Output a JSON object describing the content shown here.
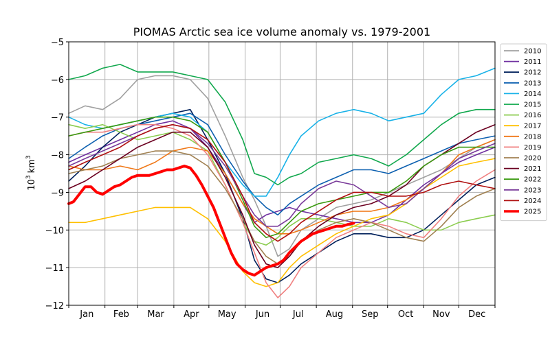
{
  "chart_data": {
    "type": "line",
    "title": "PIOMAS Arctic sea ice volume anomaly vs. 1979-2001",
    "ylabel": "10³ km³",
    "ylabel_base": "10",
    "ylabel_exp": "3",
    "ylabel_unit": "km",
    "ylabel_unit_exp": "3",
    "ylim": [
      -12,
      -5
    ],
    "yticks": [
      "−5",
      "−6",
      "−7",
      "−8",
      "−9",
      "−10",
      "−11",
      "−12"
    ],
    "ytick_values": [
      -5,
      -6,
      -7,
      -8,
      -9,
      -10,
      -11,
      -12
    ],
    "xlim": [
      1,
      366
    ],
    "month_boundaries": [
      1,
      32,
      60,
      91,
      121,
      152,
      182,
      213,
      244,
      274,
      305,
      335,
      366
    ],
    "months": [
      "Jan",
      "Feb",
      "Mar",
      "Apr",
      "May",
      "Jun",
      "Jul",
      "Aug",
      "Sep",
      "Oct",
      "Nov",
      "Dec"
    ],
    "grid": true,
    "legend_position": "right",
    "series": [
      {
        "name": "2010",
        "color": "#a0a0a0",
        "x": [
          1,
          15,
          30,
          45,
          60,
          75,
          90,
          105,
          120,
          135,
          150,
          160,
          170,
          180,
          190,
          200,
          215,
          230,
          245,
          260,
          275,
          290,
          305,
          320,
          335,
          350,
          366
        ],
        "y": [
          -6.9,
          -6.7,
          -6.8,
          -6.5,
          -6.0,
          -5.9,
          -5.9,
          -6.0,
          -6.5,
          -7.5,
          -8.6,
          -9.2,
          -9.9,
          -10.7,
          -10.5,
          -10.0,
          -9.7,
          -9.4,
          -9.3,
          -9.2,
          -9.0,
          -8.8,
          -8.6,
          -8.4,
          -8.1,
          -7.8,
          -7.6
        ]
      },
      {
        "name": "2011",
        "color": "#7030a0",
        "x": [
          1,
          15,
          30,
          45,
          60,
          75,
          90,
          105,
          120,
          135,
          150,
          160,
          170,
          180,
          190,
          200,
          215,
          230,
          245,
          260,
          275,
          290,
          305,
          320,
          335,
          350,
          366
        ],
        "y": [
          -8.2,
          -8.0,
          -7.8,
          -7.6,
          -7.4,
          -7.2,
          -7.1,
          -7.3,
          -7.8,
          -8.5,
          -9.3,
          -9.8,
          -9.6,
          -9.5,
          -9.4,
          -9.5,
          -9.6,
          -9.7,
          -9.8,
          -9.8,
          -9.6,
          -9.2,
          -8.8,
          -8.5,
          -8.2,
          -8.0,
          -7.8
        ]
      },
      {
        "name": "2012",
        "color": "#00205b",
        "x": [
          1,
          15,
          30,
          45,
          60,
          75,
          90,
          105,
          120,
          135,
          150,
          160,
          170,
          180,
          190,
          200,
          215,
          230,
          245,
          260,
          275,
          290,
          305,
          320,
          335,
          350,
          366
        ],
        "y": [
          -8.7,
          -8.3,
          -7.8,
          -7.4,
          -7.2,
          -7.0,
          -6.9,
          -6.8,
          -7.6,
          -8.5,
          -9.7,
          -10.8,
          -11.3,
          -11.4,
          -11.2,
          -10.9,
          -10.6,
          -10.3,
          -10.1,
          -10.1,
          -10.2,
          -10.2,
          -10.0,
          -9.6,
          -9.2,
          -8.8,
          -8.6
        ]
      },
      {
        "name": "2013",
        "color": "#0d60b0",
        "x": [
          1,
          15,
          30,
          45,
          60,
          75,
          90,
          105,
          120,
          135,
          150,
          160,
          170,
          180,
          190,
          200,
          215,
          230,
          245,
          260,
          275,
          290,
          305,
          320,
          335,
          350,
          366
        ],
        "y": [
          -8.1,
          -7.8,
          -7.5,
          -7.3,
          -7.2,
          -7.1,
          -7.0,
          -6.9,
          -7.2,
          -8.0,
          -8.7,
          -9.1,
          -9.4,
          -9.6,
          -9.3,
          -9.1,
          -8.8,
          -8.6,
          -8.4,
          -8.4,
          -8.5,
          -8.3,
          -8.1,
          -7.9,
          -7.7,
          -7.6,
          -7.5
        ]
      },
      {
        "name": "2014",
        "color": "#18b2e8",
        "x": [
          1,
          15,
          30,
          45,
          60,
          75,
          90,
          105,
          120,
          135,
          150,
          160,
          170,
          180,
          190,
          200,
          215,
          230,
          245,
          260,
          275,
          290,
          305,
          320,
          335,
          350,
          366
        ],
        "y": [
          -7.0,
          -7.2,
          -7.3,
          -7.2,
          -7.1,
          -7.0,
          -6.9,
          -7.0,
          -7.4,
          -8.2,
          -8.8,
          -9.1,
          -9.1,
          -8.6,
          -8.0,
          -7.5,
          -7.1,
          -6.9,
          -6.8,
          -6.9,
          -7.1,
          -7.0,
          -6.9,
          -6.4,
          -6.0,
          -5.9,
          -5.7
        ]
      },
      {
        "name": "2015",
        "color": "#11a84d",
        "x": [
          1,
          15,
          30,
          45,
          60,
          75,
          90,
          105,
          120,
          135,
          150,
          160,
          170,
          180,
          190,
          200,
          215,
          230,
          245,
          260,
          275,
          290,
          305,
          320,
          335,
          350,
          366
        ],
        "y": [
          -6.0,
          -5.9,
          -5.7,
          -5.6,
          -5.8,
          -5.8,
          -5.8,
          -5.9,
          -6.0,
          -6.6,
          -7.6,
          -8.5,
          -8.6,
          -8.8,
          -8.6,
          -8.5,
          -8.2,
          -8.1,
          -8.0,
          -8.1,
          -8.3,
          -8.0,
          -7.6,
          -7.2,
          -6.9,
          -6.8,
          -6.8
        ]
      },
      {
        "name": "2016",
        "color": "#8ccd50",
        "x": [
          1,
          15,
          30,
          45,
          60,
          75,
          90,
          105,
          120,
          135,
          150,
          160,
          170,
          180,
          190,
          200,
          215,
          230,
          245,
          260,
          275,
          290,
          305,
          320,
          335,
          350,
          366
        ],
        "y": [
          -7.2,
          -7.3,
          -7.2,
          -7.4,
          -7.6,
          -7.5,
          -7.4,
          -7.6,
          -7.9,
          -8.8,
          -9.8,
          -10.3,
          -10.4,
          -10.2,
          -9.9,
          -9.7,
          -9.7,
          -9.8,
          -9.9,
          -9.9,
          -9.7,
          -9.8,
          -10.0,
          -10.0,
          -9.8,
          -9.7,
          -9.6
        ]
      },
      {
        "name": "2017",
        "color": "#ffc000",
        "x": [
          1,
          15,
          30,
          45,
          60,
          75,
          90,
          105,
          120,
          135,
          150,
          160,
          170,
          180,
          190,
          200,
          215,
          230,
          245,
          260,
          275,
          290,
          305,
          320,
          335,
          350,
          366
        ],
        "y": [
          -9.8,
          -9.8,
          -9.7,
          -9.6,
          -9.5,
          -9.4,
          -9.4,
          -9.4,
          -9.7,
          -10.3,
          -11.1,
          -11.4,
          -11.5,
          -11.4,
          -11.0,
          -10.7,
          -10.4,
          -10.1,
          -9.9,
          -9.7,
          -9.6,
          -9.3,
          -8.9,
          -8.6,
          -8.3,
          -8.2,
          -8.1
        ]
      },
      {
        "name": "2018",
        "color": "#f07818",
        "x": [
          1,
          15,
          30,
          45,
          60,
          75,
          90,
          105,
          120,
          135,
          150,
          160,
          170,
          180,
          190,
          200,
          215,
          230,
          245,
          260,
          275,
          290,
          305,
          320,
          335,
          350,
          366
        ],
        "y": [
          -8.3,
          -8.4,
          -8.4,
          -8.3,
          -8.4,
          -8.2,
          -7.9,
          -7.8,
          -7.9,
          -8.5,
          -9.3,
          -9.7,
          -9.9,
          -10.1,
          -10.1,
          -10.0,
          -9.8,
          -9.6,
          -9.5,
          -9.5,
          -9.4,
          -9.2,
          -8.9,
          -8.5,
          -8.0,
          -7.8,
          -7.6
        ]
      },
      {
        "name": "2019",
        "color": "#f08080",
        "x": [
          1,
          15,
          30,
          45,
          60,
          75,
          90,
          105,
          120,
          135,
          150,
          160,
          170,
          180,
          190,
          200,
          215,
          230,
          245,
          260,
          275,
          290,
          305,
          320,
          335,
          350,
          366
        ],
        "y": [
          -7.5,
          -7.4,
          -7.4,
          -7.3,
          -7.2,
          -7.2,
          -7.3,
          -7.5,
          -8.0,
          -8.8,
          -9.8,
          -10.6,
          -11.4,
          -11.8,
          -11.5,
          -11.0,
          -10.6,
          -10.2,
          -10.0,
          -9.8,
          -9.9,
          -10.1,
          -10.2,
          -9.7,
          -9.1,
          -8.7,
          -8.4
        ]
      },
      {
        "name": "2020",
        "color": "#a08050",
        "x": [
          1,
          15,
          30,
          45,
          60,
          75,
          90,
          105,
          120,
          135,
          150,
          160,
          170,
          180,
          190,
          200,
          215,
          230,
          245,
          260,
          275,
          290,
          305,
          320,
          335,
          350,
          366
        ],
        "y": [
          -8.5,
          -8.4,
          -8.3,
          -8.1,
          -8.0,
          -7.9,
          -7.9,
          -8.0,
          -8.3,
          -8.9,
          -9.7,
          -10.3,
          -10.7,
          -10.9,
          -10.7,
          -10.3,
          -10.0,
          -9.8,
          -9.7,
          -9.8,
          -10.0,
          -10.2,
          -10.3,
          -9.9,
          -9.4,
          -9.1,
          -8.9
        ]
      },
      {
        "name": "2021",
        "color": "#6b0020",
        "x": [
          1,
          15,
          30,
          45,
          60,
          75,
          90,
          105,
          120,
          135,
          150,
          160,
          170,
          180,
          190,
          200,
          215,
          230,
          245,
          260,
          275,
          290,
          305,
          320,
          335,
          350,
          366
        ],
        "y": [
          -8.9,
          -8.7,
          -8.4,
          -8.1,
          -7.8,
          -7.6,
          -7.4,
          -7.4,
          -7.8,
          -8.6,
          -9.6,
          -10.4,
          -10.9,
          -11.0,
          -10.7,
          -10.3,
          -9.9,
          -9.6,
          -9.4,
          -9.3,
          -9.1,
          -8.8,
          -8.3,
          -8.0,
          -7.7,
          -7.4,
          -7.2
        ]
      },
      {
        "name": "2022",
        "color": "#3a9a10",
        "x": [
          1,
          15,
          30,
          45,
          60,
          75,
          90,
          105,
          120,
          135,
          150,
          160,
          170,
          180,
          190,
          200,
          215,
          230,
          245,
          260,
          275,
          290,
          305,
          320,
          335,
          350,
          366
        ],
        "y": [
          -7.5,
          -7.4,
          -7.3,
          -7.2,
          -7.1,
          -7.0,
          -7.0,
          -7.1,
          -7.4,
          -8.2,
          -9.2,
          -9.9,
          -10.2,
          -10.1,
          -9.8,
          -9.5,
          -9.3,
          -9.2,
          -9.1,
          -9.0,
          -9.0,
          -8.7,
          -8.3,
          -8.0,
          -7.8,
          -7.8,
          -7.8
        ]
      },
      {
        "name": "2023",
        "color": "#7a3b9a",
        "x": [
          1,
          15,
          30,
          45,
          60,
          75,
          90,
          105,
          120,
          135,
          150,
          160,
          170,
          180,
          190,
          200,
          215,
          230,
          245,
          260,
          275,
          290,
          305,
          320,
          335,
          350,
          366
        ],
        "y": [
          -8.3,
          -8.1,
          -7.9,
          -7.7,
          -7.5,
          -7.3,
          -7.2,
          -7.3,
          -7.7,
          -8.3,
          -9.1,
          -9.6,
          -9.9,
          -9.9,
          -9.7,
          -9.3,
          -8.9,
          -8.7,
          -8.8,
          -9.1,
          -9.4,
          -9.3,
          -8.9,
          -8.5,
          -8.1,
          -7.9,
          -7.7
        ]
      },
      {
        "name": "2024",
        "color": "#b01010",
        "x": [
          1,
          15,
          30,
          45,
          60,
          75,
          90,
          105,
          120,
          135,
          150,
          160,
          170,
          180,
          190,
          200,
          215,
          230,
          245,
          260,
          275,
          290,
          305,
          320,
          335,
          350,
          366
        ],
        "y": [
          -8.4,
          -8.2,
          -8.0,
          -7.8,
          -7.5,
          -7.3,
          -7.2,
          -7.3,
          -7.6,
          -8.2,
          -9.1,
          -9.8,
          -10.1,
          -10.3,
          -10.1,
          -9.8,
          -9.5,
          -9.2,
          -9.0,
          -9.0,
          -9.1,
          -9.1,
          -9.0,
          -8.8,
          -8.7,
          -8.8,
          -8.9
        ]
      },
      {
        "name": "2025",
        "color": "#ff0000",
        "x": [
          1,
          5,
          10,
          15,
          20,
          25,
          30,
          35,
          40,
          45,
          50,
          55,
          60,
          65,
          70,
          75,
          80,
          85,
          90,
          95,
          100,
          105,
          110,
          115,
          120,
          125,
          130,
          135,
          140,
          145,
          150,
          155,
          160,
          165,
          170,
          175,
          180,
          185,
          190,
          195,
          200,
          205,
          210,
          215,
          220,
          225,
          230,
          235,
          240,
          245
        ],
        "y": [
          -9.3,
          -9.25,
          -9.05,
          -8.85,
          -8.85,
          -9.0,
          -9.05,
          -8.95,
          -8.85,
          -8.8,
          -8.7,
          -8.6,
          -8.55,
          -8.55,
          -8.55,
          -8.5,
          -8.45,
          -8.4,
          -8.4,
          -8.35,
          -8.3,
          -8.35,
          -8.55,
          -8.8,
          -9.1,
          -9.4,
          -9.8,
          -10.2,
          -10.6,
          -10.9,
          -11.05,
          -11.15,
          -11.2,
          -11.1,
          -11.0,
          -10.95,
          -10.9,
          -10.8,
          -10.6,
          -10.45,
          -10.3,
          -10.2,
          -10.1,
          -10.05,
          -10.0,
          -9.95,
          -9.9,
          -9.9,
          -9.85,
          -9.82
        ],
        "linewidth": 4
      }
    ]
  }
}
